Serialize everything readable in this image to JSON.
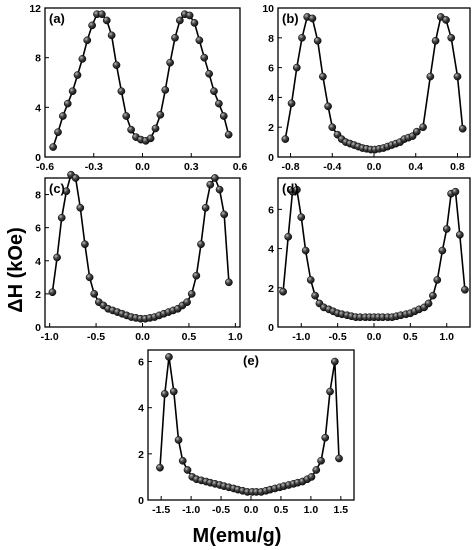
{
  "colors": {
    "marker_dark": "#111111",
    "marker_light": "#bdbdbd",
    "line": "#000000"
  },
  "axis_titles": {
    "y": "ΔH (kOe)",
    "x": "M(emu/g)"
  },
  "chart_data": [
    {
      "type": "line",
      "panel": "(a)",
      "xlim": [
        -0.6,
        0.6
      ],
      "ylim": [
        0,
        12
      ],
      "xticks": [
        -0.6,
        -0.3,
        0.0,
        0.3,
        0.6
      ],
      "xticklabels": [
        "-0.6",
        "-0.3",
        "0.0",
        "0.3",
        "0.6"
      ],
      "yticks": [
        0,
        4,
        8,
        12
      ],
      "yticklabels": [
        "0",
        "4",
        "8",
        "12"
      ],
      "x": [
        -0.55,
        -0.52,
        -0.49,
        -0.46,
        -0.43,
        -0.4,
        -0.37,
        -0.34,
        -0.31,
        -0.28,
        -0.25,
        -0.22,
        -0.19,
        -0.16,
        -0.13,
        -0.1,
        -0.07,
        -0.04,
        -0.01,
        0.02,
        0.05,
        0.08,
        0.11,
        0.14,
        0.17,
        0.2,
        0.23,
        0.26,
        0.29,
        0.32,
        0.35,
        0.38,
        0.41,
        0.44,
        0.47,
        0.5,
        0.53
      ],
      "y": [
        0.8,
        2.0,
        3.3,
        4.3,
        5.3,
        6.6,
        7.9,
        9.4,
        10.6,
        11.5,
        11.5,
        11.0,
        9.8,
        7.4,
        5.3,
        3.3,
        2.2,
        1.6,
        1.4,
        1.3,
        1.5,
        2.3,
        3.4,
        5.4,
        7.6,
        9.6,
        11.0,
        11.5,
        11.4,
        10.8,
        9.4,
        8.0,
        6.7,
        5.3,
        4.3,
        3.3,
        1.8
      ]
    },
    {
      "type": "line",
      "panel": "(b)",
      "xlim": [
        -0.92,
        0.92
      ],
      "ylim": [
        0,
        10
      ],
      "xticks": [
        -0.8,
        -0.4,
        0.0,
        0.4,
        0.8
      ],
      "xticklabels": [
        "-0.8",
        "-0.4",
        "0.0",
        "0.4",
        "0.8"
      ],
      "yticks": [
        0,
        2,
        4,
        6,
        8,
        10
      ],
      "yticklabels": [
        "0",
        "2",
        "4",
        "6",
        "8",
        "10"
      ],
      "x": [
        -0.85,
        -0.79,
        -0.74,
        -0.69,
        -0.64,
        -0.59,
        -0.54,
        -0.49,
        -0.44,
        -0.4,
        -0.35,
        -0.31,
        -0.27,
        -0.23,
        -0.19,
        -0.15,
        -0.11,
        -0.07,
        -0.03,
        0.01,
        0.05,
        0.09,
        0.13,
        0.17,
        0.21,
        0.25,
        0.29,
        0.33,
        0.37,
        0.41,
        0.47,
        0.54,
        0.59,
        0.64,
        0.69,
        0.74,
        0.8,
        0.85
      ],
      "y": [
        1.2,
        3.6,
        6.0,
        8.0,
        9.4,
        9.3,
        7.8,
        5.4,
        3.4,
        2.0,
        1.5,
        1.2,
        1.0,
        0.9,
        0.8,
        0.7,
        0.6,
        0.55,
        0.5,
        0.5,
        0.55,
        0.6,
        0.7,
        0.8,
        0.9,
        1.0,
        1.2,
        1.3,
        1.4,
        1.7,
        2.0,
        5.4,
        7.8,
        9.4,
        9.2,
        8.0,
        5.4,
        1.9
      ]
    },
    {
      "type": "line",
      "panel": "(c)",
      "xlim": [
        -1.05,
        1.05
      ],
      "ylim": [
        0,
        9
      ],
      "xticks": [
        -1.0,
        -0.5,
        0.0,
        0.5,
        1.0
      ],
      "xticklabels": [
        "-1.0",
        "-0.5",
        "0.0",
        "0.5",
        "1.0"
      ],
      "yticks": [
        0,
        2,
        4,
        6,
        8
      ],
      "yticklabels": [
        "0",
        "2",
        "4",
        "6",
        "8"
      ],
      "x": [
        -0.97,
        -0.92,
        -0.87,
        -0.82,
        -0.77,
        -0.72,
        -0.67,
        -0.62,
        -0.57,
        -0.52,
        -0.47,
        -0.42,
        -0.37,
        -0.32,
        -0.27,
        -0.22,
        -0.17,
        -0.12,
        -0.07,
        -0.02,
        0.03,
        0.08,
        0.13,
        0.18,
        0.23,
        0.28,
        0.33,
        0.38,
        0.43,
        0.48,
        0.53,
        0.58,
        0.63,
        0.68,
        0.73,
        0.78,
        0.83,
        0.88,
        0.93
      ],
      "y": [
        2.1,
        4.2,
        6.6,
        8.2,
        9.2,
        9.0,
        7.2,
        5.0,
        3.0,
        2.0,
        1.5,
        1.3,
        1.1,
        1.0,
        0.9,
        0.8,
        0.7,
        0.6,
        0.55,
        0.5,
        0.5,
        0.55,
        0.6,
        0.7,
        0.8,
        0.9,
        1.0,
        1.1,
        1.3,
        1.5,
        2.0,
        3.1,
        5.0,
        7.2,
        8.6,
        9.0,
        8.3,
        6.8,
        2.7
      ]
    },
    {
      "type": "line",
      "panel": "(d)",
      "xlim": [
        -1.32,
        1.32
      ],
      "ylim": [
        0,
        7.6
      ],
      "xticks": [
        -1.0,
        -0.5,
        0.0,
        0.5,
        1.0
      ],
      "xticklabels": [
        "-1.0",
        "-0.5",
        "0.0",
        "0.5",
        "1.0"
      ],
      "yticks": [
        0,
        2,
        4,
        6
      ],
      "yticklabels": [
        "0",
        "2",
        "4",
        "6"
      ],
      "x": [
        -1.25,
        -1.18,
        -1.12,
        -1.06,
        -1.0,
        -0.94,
        -0.87,
        -0.81,
        -0.75,
        -0.69,
        -0.62,
        -0.56,
        -0.5,
        -0.44,
        -0.37,
        -0.31,
        -0.25,
        -0.19,
        -0.12,
        -0.06,
        0.0,
        0.06,
        0.12,
        0.19,
        0.25,
        0.31,
        0.37,
        0.44,
        0.5,
        0.56,
        0.62,
        0.69,
        0.75,
        0.81,
        0.87,
        0.94,
        1.0,
        1.06,
        1.12,
        1.18,
        1.25
      ],
      "y": [
        1.8,
        4.6,
        6.9,
        7.0,
        5.6,
        3.9,
        2.4,
        1.6,
        1.2,
        1.0,
        0.9,
        0.8,
        0.7,
        0.65,
        0.6,
        0.55,
        0.5,
        0.5,
        0.5,
        0.5,
        0.5,
        0.5,
        0.5,
        0.5,
        0.5,
        0.55,
        0.6,
        0.65,
        0.7,
        0.8,
        0.9,
        1.0,
        1.2,
        1.6,
        2.4,
        3.9,
        5.0,
        6.8,
        6.9,
        4.7,
        1.9
      ]
    },
    {
      "type": "line",
      "panel": "(e)",
      "xlim": [
        -1.72,
        1.72
      ],
      "ylim": [
        0,
        6.5
      ],
      "xticks": [
        -1.5,
        -1.0,
        -0.5,
        0.0,
        0.5,
        1.0,
        1.5
      ],
      "xticklabels": [
        "-1.5",
        "-1.0",
        "-0.5",
        "0.0",
        "0.5",
        "1.0",
        "1.5"
      ],
      "yticks": [
        0,
        2,
        4,
        6
      ],
      "yticklabels": [
        "0",
        "2",
        "4",
        "6"
      ],
      "x": [
        -1.52,
        -1.44,
        -1.37,
        -1.29,
        -1.21,
        -1.14,
        -1.06,
        -0.98,
        -0.91,
        -0.83,
        -0.75,
        -0.68,
        -0.6,
        -0.52,
        -0.45,
        -0.37,
        -0.29,
        -0.22,
        -0.14,
        -0.06,
        0.02,
        0.09,
        0.17,
        0.25,
        0.32,
        0.4,
        0.48,
        0.55,
        0.63,
        0.71,
        0.78,
        0.86,
        0.94,
        1.01,
        1.09,
        1.17,
        1.24,
        1.32,
        1.4,
        1.47
      ],
      "y": [
        1.4,
        4.6,
        6.2,
        4.7,
        2.6,
        1.7,
        1.3,
        1.0,
        0.9,
        0.85,
        0.8,
        0.75,
        0.7,
        0.65,
        0.6,
        0.55,
        0.5,
        0.45,
        0.4,
        0.35,
        0.35,
        0.35,
        0.35,
        0.4,
        0.45,
        0.5,
        0.55,
        0.6,
        0.65,
        0.7,
        0.75,
        0.8,
        0.9,
        1.0,
        1.3,
        1.7,
        2.7,
        4.7,
        6.0,
        1.8
      ]
    }
  ]
}
